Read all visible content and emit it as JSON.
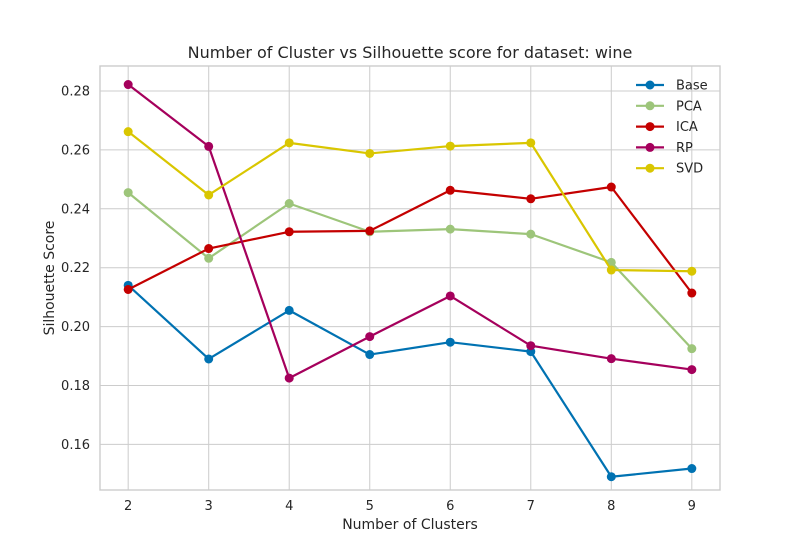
{
  "chart_data": {
    "type": "line",
    "title": "Number of Cluster vs Silhouette score for dataset: wine",
    "xlabel": "Number of Clusters",
    "ylabel": "Silhouette Score",
    "x": [
      2,
      3,
      4,
      5,
      6,
      7,
      8,
      9
    ],
    "xlim": [
      1.65,
      9.35
    ],
    "ylim": [
      0.1445,
      0.2885
    ],
    "yticks": [
      0.16,
      0.18,
      0.2,
      0.22,
      0.24,
      0.26,
      0.28
    ],
    "ytick_labels": [
      "0.16",
      "0.18",
      "0.20",
      "0.22",
      "0.24",
      "0.26",
      "0.28"
    ],
    "xtick_labels": [
      "2",
      "3",
      "4",
      "5",
      "6",
      "7",
      "8",
      "9"
    ],
    "grid": true,
    "legend_position": "top-right",
    "series": [
      {
        "name": "Base",
        "color": "#0072B2",
        "values": [
          0.214,
          0.189,
          0.2055,
          0.1905,
          0.1947,
          0.1915,
          0.149,
          0.1518
        ]
      },
      {
        "name": "PCA",
        "color": "#9DC57A",
        "values": [
          0.2455,
          0.2232,
          0.2418,
          0.2322,
          0.2331,
          0.2314,
          0.2218,
          0.1925
        ]
      },
      {
        "name": "ICA",
        "color": "#C40000",
        "values": [
          0.2126,
          0.2265,
          0.2322,
          0.2325,
          0.2463,
          0.2434,
          0.2474,
          0.2114
        ]
      },
      {
        "name": "RP",
        "color": "#A5005C",
        "values": [
          0.2822,
          0.2612,
          0.1825,
          0.1966,
          0.2104,
          0.1935,
          0.1891,
          0.1854
        ]
      },
      {
        "name": "SVD",
        "color": "#D9C600",
        "values": [
          0.2662,
          0.2447,
          0.2624,
          0.2588,
          0.2613,
          0.2624,
          0.2192,
          0.2188
        ]
      }
    ]
  }
}
